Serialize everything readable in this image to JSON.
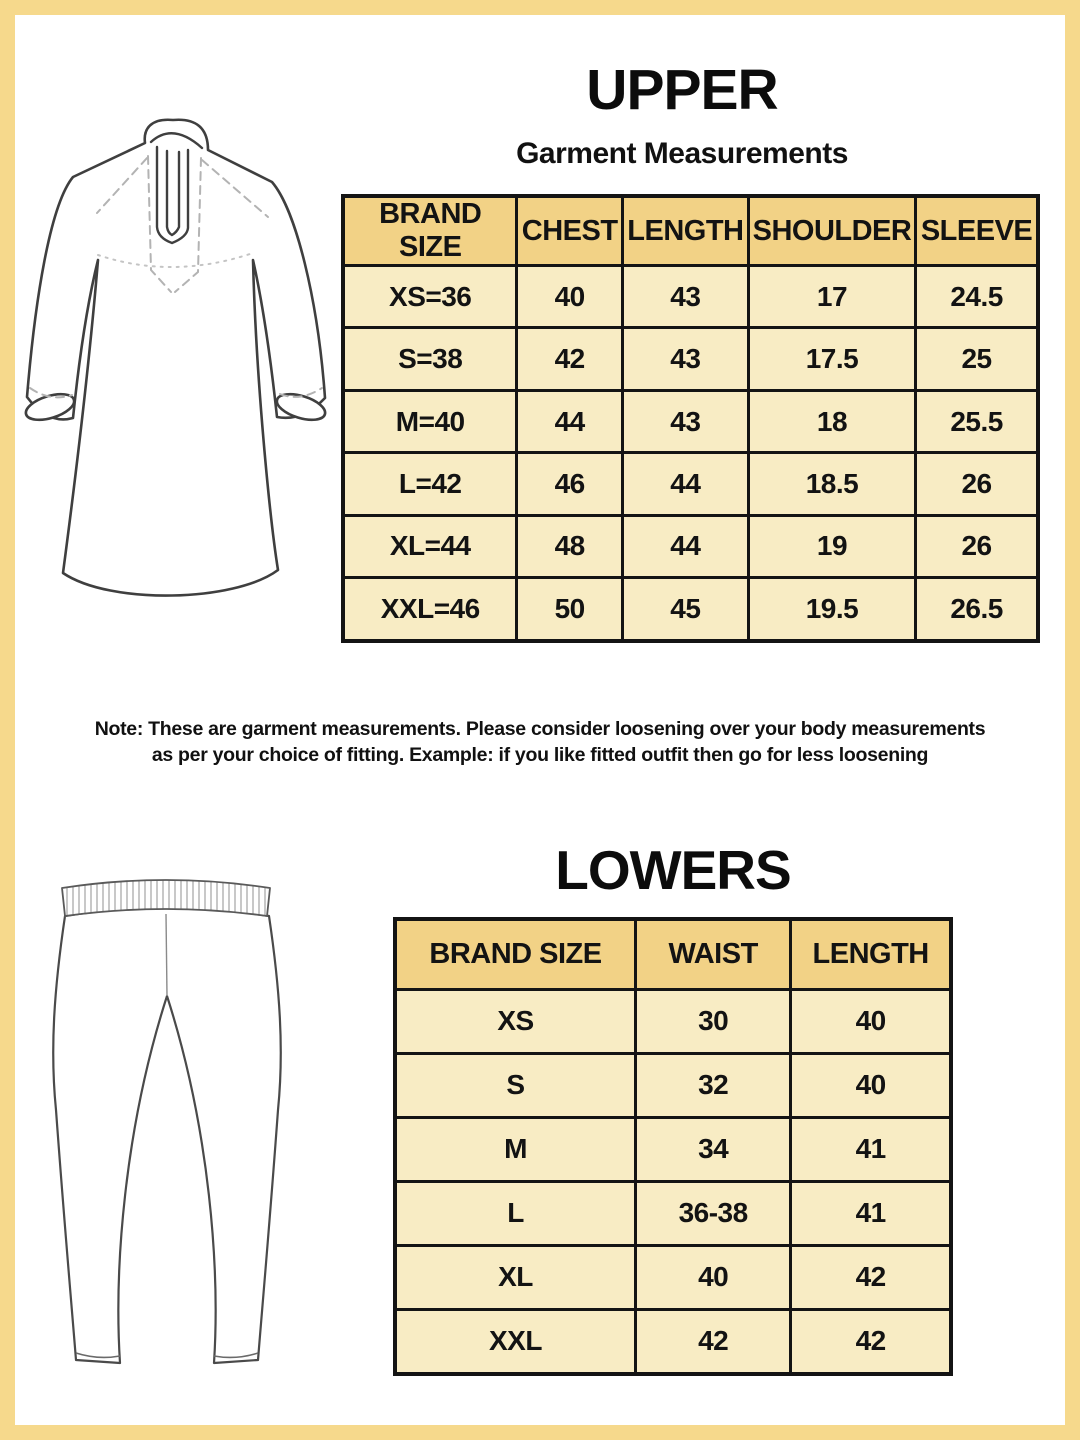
{
  "colors": {
    "frame": "#f6d98c",
    "header-bg": "#f2d286",
    "cell-bg": "#f8ecc4",
    "grid": "#141414"
  },
  "upper": {
    "title": "UPPER",
    "subtitle": "Garment Measurements",
    "illustration": "kurta-line-drawing",
    "table": {
      "headers": [
        "BRAND SIZE",
        "CHEST",
        "LENGTH",
        "SHOULDER",
        "SLEEVE"
      ],
      "rows": [
        [
          "XS=36",
          "40",
          "43",
          "17",
          "24.5"
        ],
        [
          "S=38",
          "42",
          "43",
          "17.5",
          "25"
        ],
        [
          "M=40",
          "44",
          "43",
          "18",
          "25.5"
        ],
        [
          "L=42",
          "46",
          "44",
          "18.5",
          "26"
        ],
        [
          "XL=44",
          "48",
          "44",
          "19",
          "26"
        ],
        [
          "XXL=46",
          "50",
          "45",
          "19.5",
          "26.5"
        ]
      ]
    }
  },
  "note": {
    "line1": "Note: These are garment measurements. Please consider loosening over your body measurements",
    "line2": "as per your choice of fitting. Example: if you like fitted outfit then go for less loosening"
  },
  "lowers": {
    "title": "LOWERS",
    "illustration": "leggings-line-drawing",
    "table": {
      "headers": [
        "BRAND SIZE",
        "WAIST",
        "LENGTH"
      ],
      "rows": [
        [
          "XS",
          "30",
          "40"
        ],
        [
          "S",
          "32",
          "40"
        ],
        [
          "M",
          "34",
          "41"
        ],
        [
          "L",
          "36-38",
          "41"
        ],
        [
          "XL",
          "40",
          "42"
        ],
        [
          "XXL",
          "42",
          "42"
        ]
      ]
    }
  }
}
